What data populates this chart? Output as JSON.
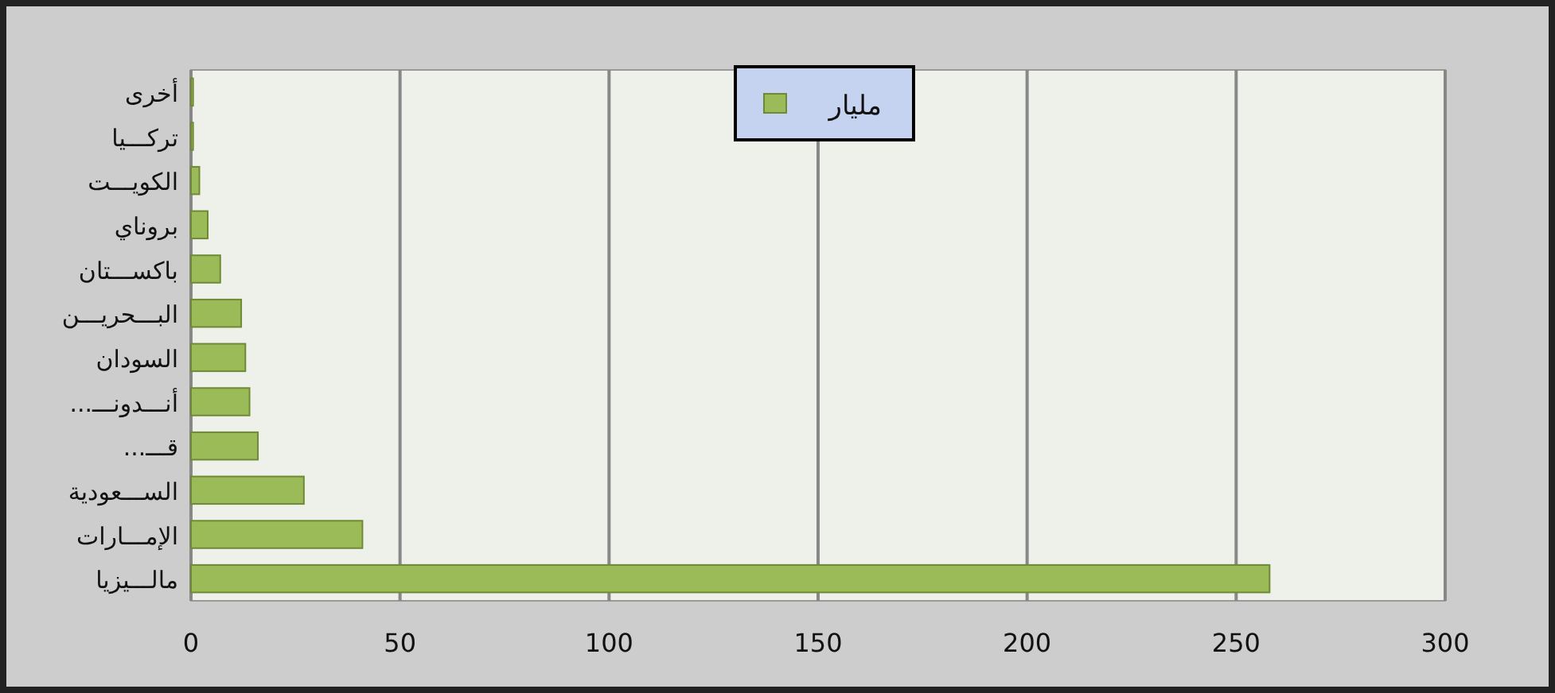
{
  "chart_data": {
    "type": "bar",
    "orientation": "horizontal",
    "categories": [
      "أخرى",
      "تركـــيا",
      "الكويـــت",
      "بروناي",
      "باكســـتان",
      "البـــحريـــن",
      "السودان",
      "أنـــدونـــ...",
      "قـــ...",
      "الســـعودية",
      "الإمـــارات",
      "مالـــيزيا"
    ],
    "series": [
      {
        "name": "مليار",
        "color": "#9bbb59",
        "values": [
          0.5,
          0.5,
          2,
          4,
          7,
          12,
          13,
          14,
          16,
          27,
          41,
          258
        ]
      }
    ],
    "xlim": [
      0,
      300
    ],
    "xticks": [
      0,
      50,
      100,
      150,
      200,
      250,
      300
    ],
    "grid": "x",
    "legend": "top"
  }
}
